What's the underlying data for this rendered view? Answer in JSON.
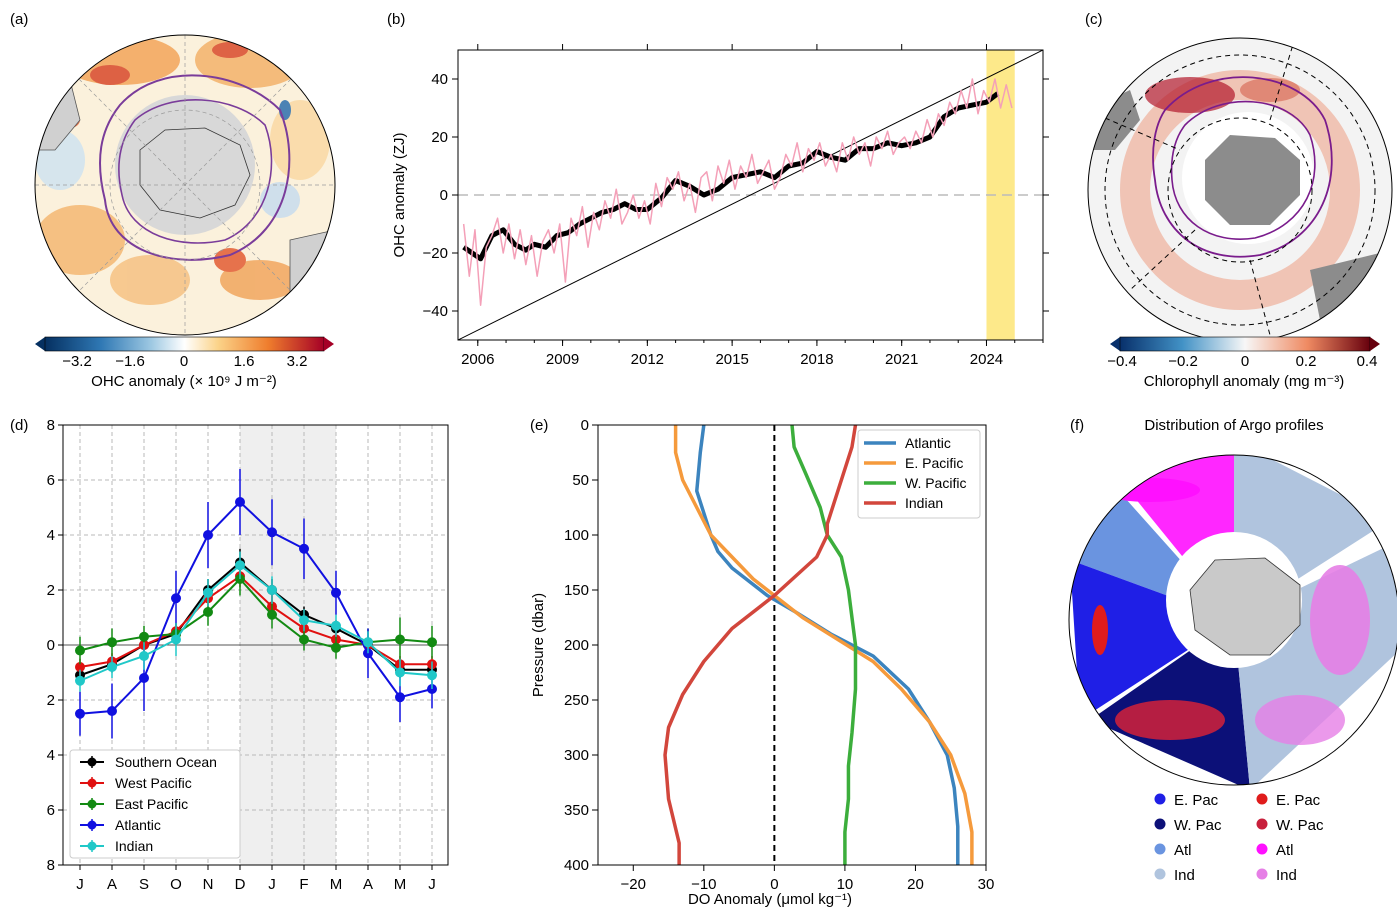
{
  "panels": {
    "a": {
      "label": "(a)",
      "colorbar_ticks": [
        "−3.2",
        "−1.6",
        "0",
        "1.6",
        "3.2"
      ],
      "colorbar_label": "OHC anomaly (× 10⁹ J m⁻²)"
    },
    "b": {
      "label": "(b)",
      "ylabel": "OHC anomaly (ZJ)"
    },
    "c": {
      "label": "(c)",
      "colorbar_ticks": [
        "−0.4",
        "−0.2",
        "0",
        "0.2",
        "0.4"
      ],
      "colorbar_label": "Chlorophyll anomaly (mg m⁻³)"
    },
    "d": {
      "label": "(d)"
    },
    "e": {
      "label": "(e)",
      "ylabel": "Pressure (dbar)",
      "xlabel": "DO Anomaly (μmol kg⁻¹)"
    },
    "f": {
      "label": "(f)",
      "title": "Distribution of Argo profiles",
      "legend": [
        {
          "label": "E. Pac",
          "color": "#1f1fe6"
        },
        {
          "label": "E. Pac",
          "color": "#e01c1c"
        },
        {
          "label": "W. Pac",
          "color": "#0c1078"
        },
        {
          "label": "W. Pac",
          "color": "#c8203c"
        },
        {
          "label": "Atl",
          "color": "#6a94e0"
        },
        {
          "label": "Atl",
          "color": "#ff10ff"
        },
        {
          "label": "Ind",
          "color": "#b0c4de"
        },
        {
          "label": "Ind",
          "color": "#e67fe6"
        }
      ]
    }
  },
  "chart_data": [
    {
      "panel": "b",
      "type": "line",
      "ylabel": "OHC anomaly (ZJ)",
      "xlim": [
        2005.3,
        2026.0
      ],
      "ylim": [
        -50,
        50
      ],
      "xticks": [
        2006,
        2009,
        2012,
        2015,
        2018,
        2021,
        2024
      ],
      "yticks": [
        -40,
        -20,
        0,
        20,
        40
      ],
      "highlight_span": [
        2024.0,
        2025.0
      ],
      "trend_line": {
        "x": [
          2005.3,
          2026.0
        ],
        "y": [
          -50,
          50
        ]
      },
      "zero_line": 0,
      "series": [
        {
          "role": "smoothed",
          "color": "#000000",
          "x": [
            2005.5,
            2005.8,
            2006.1,
            2006.5,
            2006.9,
            2007.3,
            2007.7,
            2008.0,
            2008.4,
            2008.8,
            2009.2,
            2009.6,
            2010.0,
            2010.4,
            2010.8,
            2011.2,
            2011.6,
            2012.0,
            2012.5,
            2013.0,
            2013.5,
            2014.0,
            2014.5,
            2015.0,
            2015.5,
            2016.0,
            2016.5,
            2017.0,
            2017.5,
            2018.0,
            2018.5,
            2019.0,
            2019.5,
            2020.0,
            2020.5,
            2021.0,
            2021.5,
            2022.0,
            2022.5,
            2023.0,
            2023.5,
            2024.0,
            2024.4
          ],
          "y": [
            -18,
            -20,
            -22,
            -14,
            -12,
            -17,
            -19,
            -17,
            -18,
            -14,
            -13,
            -10,
            -8,
            -6,
            -5,
            -3,
            -5,
            -5,
            -1,
            5,
            3,
            0,
            2,
            6,
            7,
            8,
            6,
            10,
            11,
            15,
            13,
            12,
            16,
            16,
            18,
            17,
            18,
            20,
            27,
            30,
            31,
            32,
            35
          ]
        },
        {
          "role": "monthly",
          "color": "#f4a0b8",
          "x": [
            2005.5,
            2005.7,
            2005.9,
            2006.1,
            2006.3,
            2006.5,
            2006.7,
            2006.9,
            2007.1,
            2007.3,
            2007.5,
            2007.7,
            2007.9,
            2008.1,
            2008.3,
            2008.5,
            2008.7,
            2008.9,
            2009.1,
            2009.3,
            2009.5,
            2009.7,
            2009.9,
            2010.1,
            2010.3,
            2010.5,
            2010.7,
            2010.9,
            2011.1,
            2011.3,
            2011.5,
            2011.7,
            2011.9,
            2012.1,
            2012.3,
            2012.5,
            2012.7,
            2012.9,
            2013.1,
            2013.3,
            2013.5,
            2013.7,
            2013.9,
            2014.1,
            2014.3,
            2014.5,
            2014.7,
            2014.9,
            2015.1,
            2015.3,
            2015.5,
            2015.7,
            2015.9,
            2016.1,
            2016.3,
            2016.5,
            2016.7,
            2016.9,
            2017.1,
            2017.3,
            2017.5,
            2017.7,
            2017.9,
            2018.1,
            2018.3,
            2018.5,
            2018.7,
            2018.9,
            2019.1,
            2019.3,
            2019.5,
            2019.7,
            2019.9,
            2020.1,
            2020.3,
            2020.5,
            2020.7,
            2020.9,
            2021.1,
            2021.3,
            2021.5,
            2021.7,
            2021.9,
            2022.1,
            2022.3,
            2022.5,
            2022.7,
            2022.9,
            2023.1,
            2023.3,
            2023.5,
            2023.7,
            2023.9,
            2024.1,
            2024.3,
            2024.5,
            2024.7,
            2024.9
          ],
          "y": [
            -10,
            -28,
            -12,
            -38,
            -18,
            -14,
            -8,
            -20,
            -10,
            -22,
            -12,
            -24,
            -14,
            -28,
            -16,
            -12,
            -20,
            -10,
            -30,
            -8,
            -14,
            -4,
            -18,
            -6,
            -12,
            -2,
            -8,
            2,
            -10,
            -6,
            0,
            -8,
            -2,
            -10,
            4,
            -4,
            6,
            2,
            8,
            -2,
            4,
            -6,
            6,
            8,
            -2,
            10,
            4,
            12,
            2,
            10,
            6,
            14,
            4,
            8,
            12,
            2,
            6,
            14,
            10,
            18,
            8,
            16,
            12,
            18,
            10,
            14,
            8,
            18,
            12,
            20,
            14,
            18,
            10,
            20,
            16,
            22,
            14,
            18,
            20,
            16,
            22,
            18,
            26,
            20,
            28,
            24,
            32,
            28,
            36,
            30,
            40,
            28,
            36,
            32,
            40,
            30,
            38,
            30
          ]
        }
      ]
    },
    {
      "panel": "d",
      "type": "line",
      "categories": [
        "J",
        "A",
        "S",
        "O",
        "N",
        "D",
        "J",
        "F",
        "M",
        "A",
        "M",
        "J"
      ],
      "ylim_labels": [
        "8",
        "6",
        "4",
        "2",
        "0",
        "2",
        "4",
        "6",
        "8"
      ],
      "ylim": [
        -8,
        8
      ],
      "shaded_categories": [
        5,
        8
      ],
      "series": [
        {
          "name": "Southern Ocean",
          "color": "#000000",
          "values": [
            -1.1,
            -0.7,
            0.0,
            0.4,
            2.0,
            3.0,
            2.0,
            1.1,
            0.6,
            0.0,
            -0.9,
            -0.9
          ],
          "err": [
            0.3,
            0.3,
            0.4,
            0.3,
            0.4,
            0.5,
            0.4,
            0.3,
            0.3,
            0.3,
            0.3,
            0.3
          ]
        },
        {
          "name": "West Pacific",
          "color": "#e01010",
          "values": [
            -0.8,
            -0.6,
            0.0,
            0.5,
            1.7,
            2.5,
            1.4,
            0.6,
            0.2,
            0.0,
            -0.7,
            -0.7
          ],
          "err": [
            0.3,
            0.3,
            0.3,
            0.3,
            0.4,
            0.4,
            0.4,
            0.3,
            0.3,
            0.3,
            0.3,
            0.3
          ]
        },
        {
          "name": "East Pacific",
          "color": "#128a12",
          "values": [
            -0.2,
            0.1,
            0.3,
            0.4,
            1.2,
            2.4,
            1.1,
            0.2,
            -0.1,
            0.1,
            0.2,
            0.1
          ],
          "err": [
            0.5,
            0.5,
            0.4,
            0.4,
            0.5,
            0.6,
            0.5,
            0.4,
            0.4,
            0.5,
            0.8,
            0.6
          ]
        },
        {
          "name": "Atlantic",
          "color": "#1010e0",
          "values": [
            -2.5,
            -2.4,
            -1.2,
            1.7,
            4.0,
            5.2,
            4.1,
            3.5,
            1.9,
            -0.3,
            -1.9,
            -1.6
          ],
          "err": [
            0.8,
            1.0,
            1.2,
            1.0,
            1.2,
            1.2,
            1.2,
            1.1,
            0.8,
            0.9,
            0.9,
            0.7
          ]
        },
        {
          "name": "Indian",
          "color": "#20c8c8",
          "values": [
            -1.3,
            -0.8,
            -0.4,
            0.2,
            1.9,
            2.9,
            2.0,
            0.9,
            0.7,
            0.1,
            -1.0,
            -1.1
          ],
          "err": [
            0.4,
            0.4,
            0.5,
            0.6,
            0.5,
            0.5,
            0.5,
            0.4,
            0.4,
            0.4,
            0.5,
            0.5
          ]
        }
      ]
    },
    {
      "panel": "e",
      "type": "line",
      "xlabel": "DO Anomaly (μmol kg⁻¹)",
      "ylabel": "Pressure (dbar)",
      "xlim": [
        -25,
        30
      ],
      "ylim": [
        0,
        400
      ],
      "xticks": [
        -20,
        -10,
        0,
        10,
        20,
        30
      ],
      "yticks": [
        0,
        50,
        100,
        150,
        200,
        250,
        300,
        350,
        400
      ],
      "series": [
        {
          "name": "Atlantic",
          "color": "#3c84be",
          "x": [
            -10,
            -10.5,
            -11,
            -10,
            -9,
            -8,
            -6,
            -4,
            -1,
            3,
            8,
            14,
            19,
            22,
            24.5,
            25.5,
            26,
            26
          ],
          "y": [
            0,
            25,
            60,
            80,
            100,
            115,
            130,
            140,
            155,
            170,
            190,
            210,
            240,
            270,
            300,
            330,
            365,
            400
          ]
        },
        {
          "name": "E. Pacific",
          "color": "#f59a3c",
          "x": [
            -14,
            -14,
            -13,
            -11,
            -9,
            -6,
            -3,
            0,
            4,
            9,
            14,
            18,
            22,
            25,
            27,
            28,
            28
          ],
          "y": [
            0,
            25,
            50,
            75,
            100,
            120,
            140,
            155,
            175,
            195,
            215,
            240,
            270,
            300,
            335,
            370,
            400
          ]
        },
        {
          "name": "W. Pacific",
          "color": "#3cae3c",
          "x": [
            2.5,
            2.8,
            4.5,
            6.5,
            7.5,
            9.5,
            10.5,
            11.5,
            11.5,
            11,
            10.5,
            10.5,
            10,
            10,
            10
          ],
          "y": [
            0,
            20,
            45,
            75,
            100,
            120,
            150,
            200,
            240,
            280,
            310,
            340,
            370,
            385,
            400
          ]
        },
        {
          "name": "Indian",
          "color": "#d2463c",
          "x": [
            11.5,
            11,
            9.5,
            7.5,
            7.5,
            6,
            0,
            -6,
            -10,
            -13,
            -15,
            -15.5,
            -15,
            -13.5,
            -13.5
          ],
          "y": [
            0,
            20,
            50,
            90,
            100,
            120,
            155,
            185,
            215,
            245,
            275,
            300,
            340,
            380,
            400
          ]
        }
      ]
    }
  ]
}
